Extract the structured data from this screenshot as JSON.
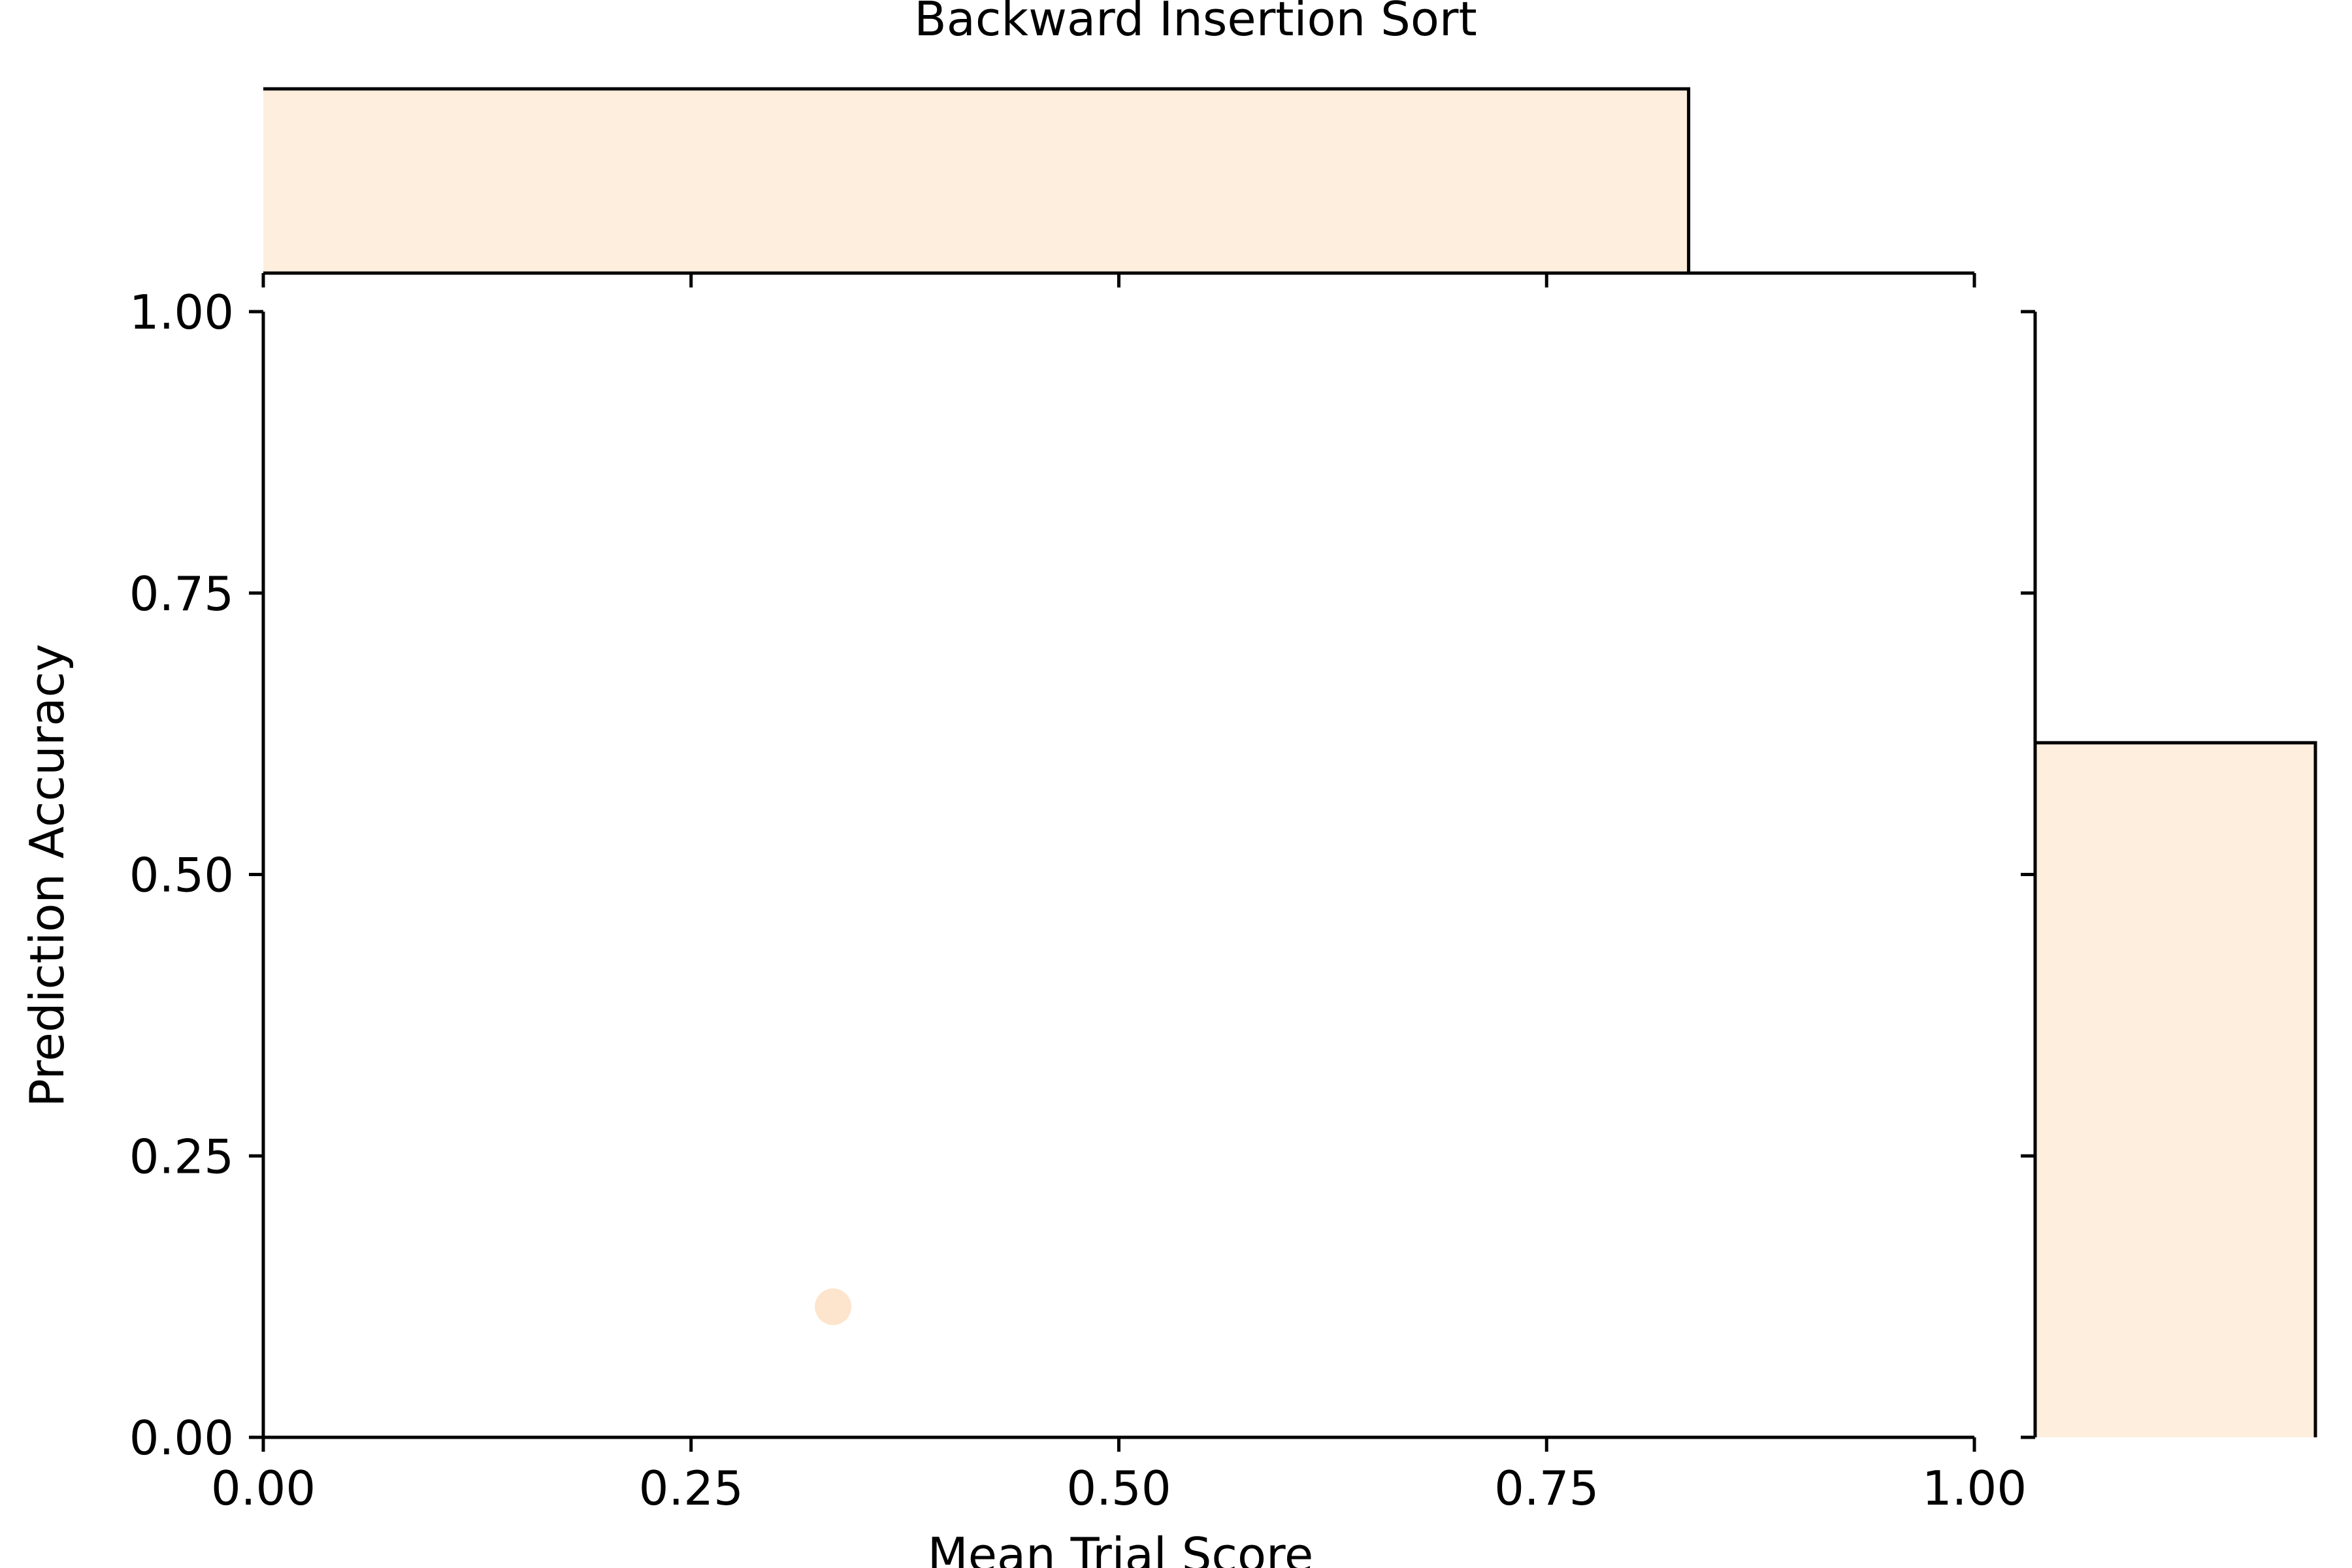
{
  "chart_data": {
    "type": "scatter",
    "title": "Backward Insertion Sort",
    "xlabel": "Mean Trial Score",
    "ylabel": "Prediction Accuracy",
    "xlim": [
      0,
      1
    ],
    "ylim": [
      0,
      1
    ],
    "xticks": [
      0,
      0.25,
      0.5,
      0.75,
      1.0
    ],
    "yticks": [
      0,
      0.25,
      0.5,
      0.75,
      1.0
    ],
    "xtick_labels": [
      "0.00",
      "0.25",
      "0.50",
      "0.75",
      "1.00"
    ],
    "ytick_labels": [
      "0.00",
      "0.25",
      "0.50",
      "0.75",
      "1.00"
    ],
    "grid": false,
    "points": [
      {
        "x": 0.333,
        "y": 0.116
      }
    ],
    "marginal_x_histogram": {
      "bins": [
        {
          "start": 0.0,
          "end": 0.833,
          "density": 1.0
        }
      ]
    },
    "marginal_y_histogram": {
      "bins": [
        {
          "start": 0.0,
          "end": 0.617,
          "density": 1.0
        }
      ]
    },
    "colors": {
      "marker": "#fde4cc",
      "histogram_fill": "#fdeede",
      "axis": "#000000"
    }
  }
}
